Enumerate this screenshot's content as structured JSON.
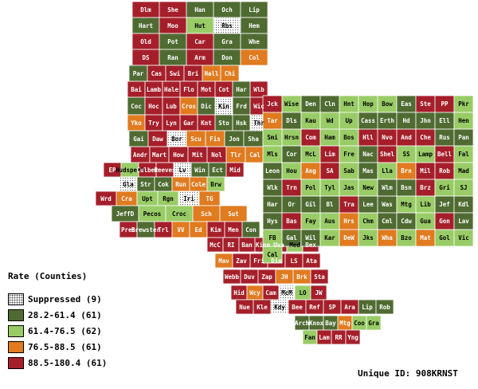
{
  "legend": {
    "title": "Rate (Counties)",
    "items": [
      {
        "label": "Suppressed (9)",
        "color": "suppressed"
      },
      {
        "label": "28.2-61.4 (61)",
        "color": "#4f6b32"
      },
      {
        "label": "61.4-76.5 (62)",
        "color": "#99cc66"
      },
      {
        "label": "76.5-88.5 (61)",
        "color": "#e07b20"
      },
      {
        "label": "88.5-180.4 (61)",
        "color": "#a51f2a"
      }
    ]
  },
  "unique_id": "Unique ID: 908KRNST",
  "colors": {
    "c1": "#4f6b32",
    "c2": "#99cc66",
    "c3": "#e07b20",
    "c4": "#a51f2a",
    "suppressed": "#ffffff"
  },
  "counties": [
    {
      "label": "Dlm",
      "cls": "c4"
    },
    {
      "label": "She",
      "cls": "c4"
    },
    {
      "label": "Han",
      "cls": "c1"
    },
    {
      "label": "Och",
      "cls": "c1"
    },
    {
      "label": "Lip",
      "cls": "c1"
    },
    {
      "label": "Hart",
      "cls": "c1"
    },
    {
      "label": "Moo",
      "cls": "c4"
    },
    {
      "label": "Hut",
      "cls": "c2"
    },
    {
      "label": "Rbs",
      "cls": "s"
    },
    {
      "label": "Hem",
      "cls": "c1"
    },
    {
      "label": "Old",
      "cls": "c4"
    },
    {
      "label": "Pot",
      "cls": "c1"
    },
    {
      "label": "Car",
      "cls": "c4"
    },
    {
      "label": "Gra",
      "cls": "c1"
    },
    {
      "label": "Whe",
      "cls": "c1"
    },
    {
      "label": "DS",
      "cls": "c4"
    },
    {
      "label": "Ran",
      "cls": "c1"
    },
    {
      "label": "Arm",
      "cls": "c4"
    },
    {
      "label": "Don",
      "cls": "c1"
    },
    {
      "label": "Col",
      "cls": "c3"
    },
    {
      "label": "Par",
      "cls": "c1"
    },
    {
      "label": "Cas",
      "cls": "c4"
    },
    {
      "label": "Swi",
      "cls": "c4"
    },
    {
      "label": "Bri",
      "cls": "c4"
    },
    {
      "label": "Hall",
      "cls": "c3"
    },
    {
      "label": "Chi",
      "cls": "c3"
    },
    {
      "label": "Bai",
      "cls": "c4"
    },
    {
      "label": "Lamb",
      "cls": "c4"
    },
    {
      "label": "Hale",
      "cls": "c4"
    },
    {
      "label": "Flo",
      "cls": "c4"
    },
    {
      "label": "Mot",
      "cls": "c4"
    },
    {
      "label": "Cot",
      "cls": "c4"
    },
    {
      "label": "Har",
      "cls": "c1"
    },
    {
      "label": "Wlb",
      "cls": "c4"
    },
    {
      "label": "Coc",
      "cls": "c1"
    },
    {
      "label": "Hoc",
      "cls": "c4"
    },
    {
      "label": "Lub",
      "cls": "c4"
    },
    {
      "label": "Cros",
      "cls": "c3"
    },
    {
      "label": "Dic",
      "cls": "c1"
    },
    {
      "label": "Kin",
      "cls": "s"
    },
    {
      "label": "Frd",
      "cls": "c1"
    },
    {
      "label": "Wic",
      "cls": "c4"
    },
    {
      "label": "Yko",
      "cls": "c3"
    },
    {
      "label": "Try",
      "cls": "c4"
    },
    {
      "label": "Lyn",
      "cls": "c4"
    },
    {
      "label": "Gar",
      "cls": "c4"
    },
    {
      "label": "Knt",
      "cls": "c4"
    },
    {
      "label": "Sto",
      "cls": "c1"
    },
    {
      "label": "Hsk",
      "cls": "c1"
    },
    {
      "label": "Thr",
      "cls": "s"
    },
    {
      "label": "Gai",
      "cls": "c1"
    },
    {
      "label": "Daw",
      "cls": "c4"
    },
    {
      "label": "Bor",
      "cls": "s"
    },
    {
      "label": "Scu",
      "cls": "c3"
    },
    {
      "label": "Fis",
      "cls": "c3"
    },
    {
      "label": "Jon",
      "cls": "c1"
    },
    {
      "label": "Sha",
      "cls": "c1"
    },
    {
      "label": "Andr",
      "cls": "c4"
    },
    {
      "label": "Mart",
      "cls": "c4"
    },
    {
      "label": "How",
      "cls": "c4"
    },
    {
      "label": "Mit",
      "cls": "c4"
    },
    {
      "label": "Nol",
      "cls": "c4"
    },
    {
      "label": "Tlr",
      "cls": "c3"
    },
    {
      "label": "Cal",
      "cls": "c3"
    },
    {
      "label": "EP",
      "cls": "c4"
    },
    {
      "label": "Hudspeth",
      "cls": "c2"
    },
    {
      "label": "Culber",
      "cls": "c4"
    },
    {
      "label": "Reeves",
      "cls": "c4"
    },
    {
      "label": "Lv",
      "cls": "s"
    },
    {
      "label": "Win",
      "cls": "c1"
    },
    {
      "label": "Ect",
      "cls": "c1"
    },
    {
      "label": "Mid",
      "cls": "c4"
    },
    {
      "label": "Gla",
      "cls": "s"
    },
    {
      "label": "Str",
      "cls": "c1"
    },
    {
      "label": "Cok",
      "cls": "c1"
    },
    {
      "label": "Run",
      "cls": "c3"
    },
    {
      "label": "Cole",
      "cls": "c3"
    },
    {
      "label": "Brw",
      "cls": "c2"
    },
    {
      "label": "Wrd",
      "cls": "c4"
    },
    {
      "label": "Cra",
      "cls": "c3"
    },
    {
      "label": "Upt",
      "cls": "c2"
    },
    {
      "label": "Rgn",
      "cls": "c2"
    },
    {
      "label": "Iri",
      "cls": "s"
    },
    {
      "label": "TG",
      "cls": "c3"
    },
    {
      "label": "JeffD",
      "cls": "c1"
    },
    {
      "label": "Pecos",
      "cls": "c2"
    },
    {
      "label": "Croc",
      "cls": "c2"
    },
    {
      "label": "Sch",
      "cls": "c3"
    },
    {
      "label": "Sut",
      "cls": "c3"
    },
    {
      "label": "Pres",
      "cls": "c4"
    },
    {
      "label": "Brewster",
      "cls": "c1"
    },
    {
      "label": "Trl",
      "cls": "c4"
    },
    {
      "label": "VV",
      "cls": "c3"
    },
    {
      "label": "Ed",
      "cls": "c3"
    },
    {
      "label": "Kim",
      "cls": "c4"
    },
    {
      "label": "Men",
      "cls": "c4"
    },
    {
      "label": "Con",
      "cls": "c1"
    },
    {
      "label": "McC",
      "cls": "c4"
    },
    {
      "label": "RI",
      "cls": "c4"
    },
    {
      "label": "Ban",
      "cls": "c4"
    },
    {
      "label": "Kinn",
      "cls": "c4"
    },
    {
      "label": "Uva",
      "cls": "c4"
    },
    {
      "label": "Med",
      "cls": "c2"
    },
    {
      "label": "Bex",
      "cls": "c4"
    },
    {
      "label": "Mav",
      "cls": "c3"
    },
    {
      "label": "Zav",
      "cls": "c4"
    },
    {
      "label": "Fri",
      "cls": "c4"
    },
    {
      "label": "Dim",
      "cls": "c4"
    },
    {
      "label": "LS",
      "cls": "c4"
    },
    {
      "label": "Ata",
      "cls": "c4"
    },
    {
      "label": "Webb",
      "cls": "c4"
    },
    {
      "label": "Duv",
      "cls": "c4"
    },
    {
      "label": "Zap",
      "cls": "c4"
    },
    {
      "label": "JH",
      "cls": "c3"
    },
    {
      "label": "Brk",
      "cls": "c3"
    },
    {
      "label": "Sta",
      "cls": "c4"
    },
    {
      "label": "Hid",
      "cls": "c4"
    },
    {
      "label": "Wcy",
      "cls": "c3"
    },
    {
      "label": "Cam",
      "cls": "c4"
    },
    {
      "label": "McM",
      "cls": "s"
    },
    {
      "label": "LO",
      "cls": "c2"
    },
    {
      "label": "JW",
      "cls": "c4"
    },
    {
      "label": "Nue",
      "cls": "c4"
    },
    {
      "label": "Kle",
      "cls": "c4"
    },
    {
      "label": "Kdy",
      "cls": "s"
    },
    {
      "label": "Bee",
      "cls": "c4"
    },
    {
      "label": "Ref",
      "cls": "c4"
    },
    {
      "label": "SP",
      "cls": "c4"
    },
    {
      "label": "Ara",
      "cls": "c4"
    },
    {
      "label": "Lip",
      "cls": "c1"
    },
    {
      "label": "Rob",
      "cls": "c1"
    },
    {
      "label": "Arch",
      "cls": "c1"
    },
    {
      "label": "Knox",
      "cls": "c1"
    },
    {
      "label": "Bay",
      "cls": "c1"
    },
    {
      "label": "Mtg",
      "cls": "c3"
    },
    {
      "label": "Coo",
      "cls": "c2"
    },
    {
      "label": "Gra",
      "cls": "c2"
    },
    {
      "label": "Fan",
      "cls": "c2"
    },
    {
      "label": "Lam",
      "cls": "c4"
    },
    {
      "label": "RR",
      "cls": "c4"
    },
    {
      "label": "Yng",
      "cls": "c4"
    },
    {
      "label": "Jck",
      "cls": "c4"
    },
    {
      "label": "Wise",
      "cls": "c2"
    },
    {
      "label": "Den",
      "cls": "c1"
    },
    {
      "label": "Cln",
      "cls": "c1"
    },
    {
      "label": "Hnt",
      "cls": "c2"
    },
    {
      "label": "Hop",
      "cls": "c2"
    },
    {
      "label": "Bow",
      "cls": "c2"
    },
    {
      "label": "Eas",
      "cls": "c1"
    },
    {
      "label": "Ste",
      "cls": "c4"
    },
    {
      "label": "PP",
      "cls": "c4"
    },
    {
      "label": "Pkr",
      "cls": "c2"
    },
    {
      "label": "Tar",
      "cls": "c3"
    },
    {
      "label": "Dls",
      "cls": "c1"
    },
    {
      "label": "Kau",
      "cls": "c2"
    },
    {
      "label": "Wd",
      "cls": "c2"
    },
    {
      "label": "Up",
      "cls": "c2"
    },
    {
      "label": "Cass",
      "cls": "c1"
    },
    {
      "label": "Erth",
      "cls": "c1"
    },
    {
      "label": "Hd",
      "cls": "c1"
    },
    {
      "label": "Jhn",
      "cls": "c1"
    },
    {
      "label": "Ell",
      "cls": "c1"
    },
    {
      "label": "Hen",
      "cls": "c2"
    },
    {
      "label": "Smi",
      "cls": "c2"
    },
    {
      "label": "Hrsn",
      "cls": "c2"
    },
    {
      "label": "Com",
      "cls": "c4"
    },
    {
      "label": "Ham",
      "cls": "c2"
    },
    {
      "label": "Bos",
      "cls": "c2"
    },
    {
      "label": "Hll",
      "cls": "c4"
    },
    {
      "label": "Nvo",
      "cls": "c4"
    },
    {
      "label": "And",
      "cls": "c4"
    },
    {
      "label": "Che",
      "cls": "c4"
    },
    {
      "label": "Rus",
      "cls": "c1"
    },
    {
      "label": "Pan",
      "cls": "c1"
    },
    {
      "label": "Mls",
      "cls": "c2"
    },
    {
      "label": "Cor",
      "cls": "c1"
    },
    {
      "label": "McL",
      "cls": "c2"
    },
    {
      "label": "Lim",
      "cls": "c4"
    },
    {
      "label": "Fre",
      "cls": "c2"
    },
    {
      "label": "Nac",
      "cls": "c1"
    },
    {
      "label": "Shel",
      "cls": "c4"
    },
    {
      "label": "SS",
      "cls": "c2"
    },
    {
      "label": "Lamp",
      "cls": "c2"
    },
    {
      "label": "Bell",
      "cls": "c4"
    },
    {
      "label": "Fal",
      "cls": "c2"
    },
    {
      "label": "Leon",
      "cls": "c1"
    },
    {
      "label": "Hou",
      "cls": "c2"
    },
    {
      "label": "Ang",
      "cls": "c3"
    },
    {
      "label": "SA",
      "cls": "c4"
    },
    {
      "label": "Sab",
      "cls": "c2"
    },
    {
      "label": "Mas",
      "cls": "c1"
    },
    {
      "label": "Lla",
      "cls": "c2"
    },
    {
      "label": "Brn",
      "cls": "c3"
    },
    {
      "label": "Mil",
      "cls": "c4"
    },
    {
      "label": "Rob",
      "cls": "c4"
    },
    {
      "label": "Mad",
      "cls": "c2"
    },
    {
      "label": "Wlk",
      "cls": "c1"
    },
    {
      "label": "Trn",
      "cls": "c4"
    },
    {
      "label": "Pol",
      "cls": "c2"
    },
    {
      "label": "Tyl",
      "cls": "c2"
    },
    {
      "label": "Jas",
      "cls": "c2"
    },
    {
      "label": "New",
      "cls": "c2"
    },
    {
      "label": "Wlm",
      "cls": "c1"
    },
    {
      "label": "Bsn",
      "cls": "c1"
    },
    {
      "label": "Brz",
      "cls": "c4"
    },
    {
      "label": "Gri",
      "cls": "c2"
    },
    {
      "label": "SJ",
      "cls": "c2"
    },
    {
      "label": "Har",
      "cls": "c1"
    },
    {
      "label": "Or",
      "cls": "c1"
    },
    {
      "label": "Gil",
      "cls": "c1"
    },
    {
      "label": "Bl",
      "cls": "c1"
    },
    {
      "label": "Tra",
      "cls": "c4"
    },
    {
      "label": "Lee",
      "cls": "c1"
    },
    {
      "label": "Was",
      "cls": "c1"
    },
    {
      "label": "Mtg",
      "cls": "c2"
    },
    {
      "label": "Lib",
      "cls": "c2"
    },
    {
      "label": "Jef",
      "cls": "c1"
    },
    {
      "label": "Kdl",
      "cls": "c1"
    },
    {
      "label": "Hys",
      "cls": "c1"
    },
    {
      "label": "Bas",
      "cls": "c4"
    },
    {
      "label": "Fay",
      "cls": "c2"
    },
    {
      "label": "Aus",
      "cls": "c2"
    },
    {
      "label": "Hrs",
      "cls": "c3"
    },
    {
      "label": "Chm",
      "cls": "c2"
    },
    {
      "label": "Cml",
      "cls": "c1"
    },
    {
      "label": "Cdw",
      "cls": "c1"
    },
    {
      "label": "Gua",
      "cls": "c2"
    },
    {
      "label": "Gon",
      "cls": "c4"
    },
    {
      "label": "Lav",
      "cls": "c1"
    },
    {
      "label": "FB",
      "cls": "c2"
    },
    {
      "label": "Gal",
      "cls": "c1"
    },
    {
      "label": "Wil",
      "cls": "c1"
    },
    {
      "label": "Kar",
      "cls": "c2"
    },
    {
      "label": "DeW",
      "cls": "c3"
    },
    {
      "label": "Jks",
      "cls": "c2"
    },
    {
      "label": "Wha",
      "cls": "c3"
    },
    {
      "label": "Bzo",
      "cls": "c2"
    },
    {
      "label": "Mat",
      "cls": "c3"
    },
    {
      "label": "Gol",
      "cls": "c2"
    },
    {
      "label": "Vic",
      "cls": "c2"
    },
    {
      "label": "Cal",
      "cls": "c2"
    }
  ]
}
